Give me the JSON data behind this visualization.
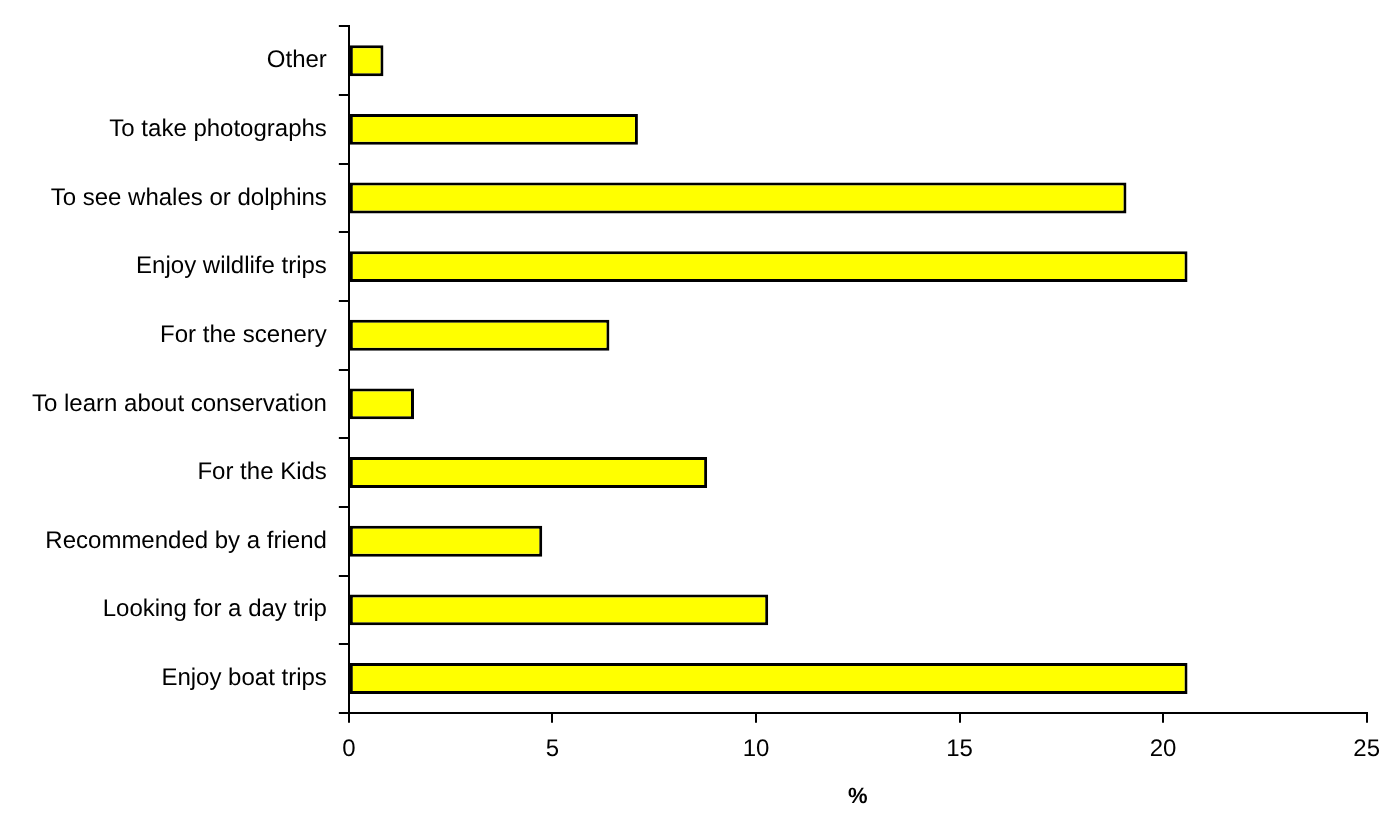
{
  "chart_data": {
    "type": "bar",
    "orientation": "horizontal",
    "xlabel": "%",
    "categories": [
      "Other",
      "To take photographs",
      "To see whales or dolphins",
      "Enjoy wildlife trips",
      "For the scenery",
      "To learn about conservation",
      "For the Kids",
      "Recommended by a friend",
      "Looking for a day trip",
      "Enjoy boat trips"
    ],
    "values": [
      0.85,
      7.1,
      19.1,
      20.6,
      6.4,
      1.6,
      8.8,
      4.75,
      10.3,
      20.6
    ],
    "color": "#ffff00",
    "xlim": [
      0,
      25
    ],
    "xticks": [
      0,
      5,
      10,
      15,
      20,
      25
    ],
    "grid": false,
    "legend": false
  }
}
